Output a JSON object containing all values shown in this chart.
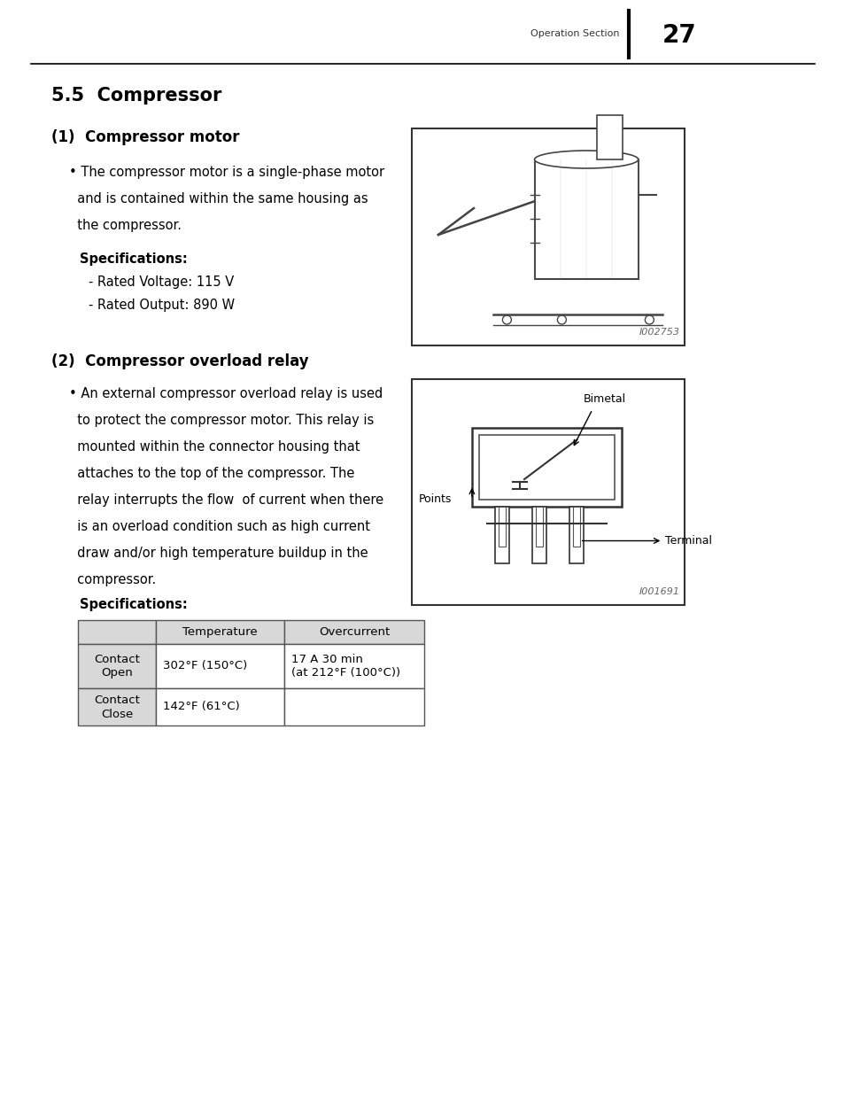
{
  "page_number": "27",
  "section_header": "Operation Section",
  "title": "5.5  Compressor",
  "subsection1": "(1)  Compressor motor",
  "spec1_bold": "Specifications:",
  "spec1_items": [
    "- Rated Voltage: 115 V",
    "- Rated Output: 890 W"
  ],
  "image1_label": "I002753",
  "subsection2": "(2)  Compressor overload relay",
  "spec2_bold": "Specifications:",
  "image2_label": "I001691",
  "table_headers": [
    "",
    "Temperature",
    "Overcurrent"
  ],
  "table_rows": [
    [
      "Contact\nOpen",
      "302°F (150°C)",
      "17 A 30 min\n(at 212°F (100°C))"
    ],
    [
      "Contact\nClose",
      "142°F (61°C)",
      ""
    ]
  ],
  "bg_color": "#ffffff",
  "table_border": "#555555"
}
